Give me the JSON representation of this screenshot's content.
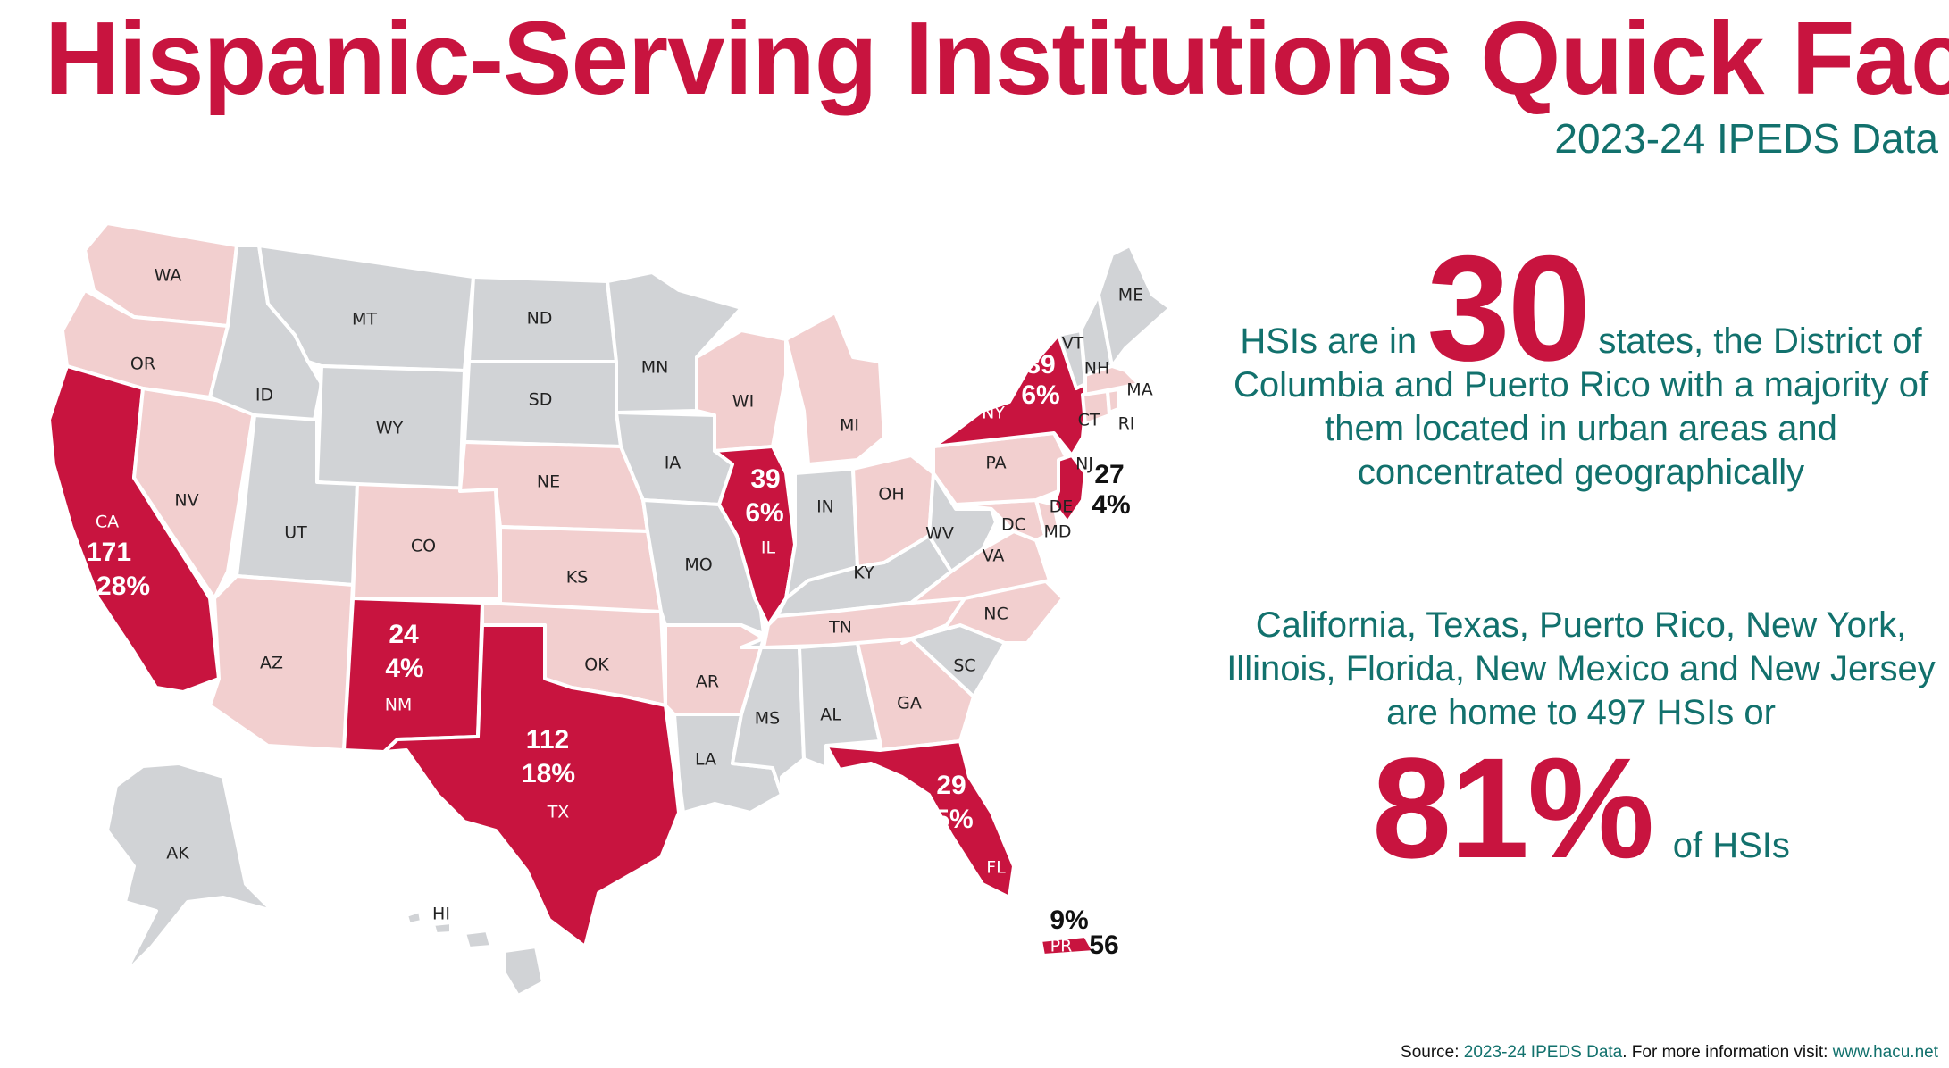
{
  "title": "Hispanic-Serving Institutions Quick Fact",
  "subtitle": "2023-24 IPEDS Data",
  "colors": {
    "highlight_state": "#c8143f",
    "hsi_state": "#f2cfcf",
    "no_hsi_state": "#d1d3d6",
    "accent_text": "#12716d",
    "title_red": "#c8143f"
  },
  "fact1": {
    "prefix": "HSIs are in",
    "number": "30",
    "suffix": "states, the District of Columbia and Puerto Rico with a majority of them located in urban areas and concentrated geographically"
  },
  "fact2": {
    "text": "California, Texas, Puerto Rico, New York, Illinois, Florida, New Mexico and New Jersey are home to 497 HSIs or",
    "percent": "81%",
    "suffix": "of HSIs"
  },
  "source": {
    "label": "Source:",
    "dataset": "2023-24 IPEDS Data",
    "more": ". For more information visit:",
    "url": "www.hacu.net"
  },
  "map": {
    "states": {
      "WA": "WA",
      "OR": "OR",
      "CA": "CA",
      "NV": "NV",
      "ID": "ID",
      "MT": "MT",
      "WY": "WY",
      "UT": "UT",
      "AZ": "AZ",
      "CO": "CO",
      "NM": "NM",
      "ND": "ND",
      "SD": "SD",
      "NE": "NE",
      "KS": "KS",
      "OK": "OK",
      "TX": "TX",
      "MN": "MN",
      "IA": "IA",
      "MO": "MO",
      "AR": "AR",
      "LA": "LA",
      "WI": "WI",
      "IL": "IL",
      "MI": "MI",
      "IN": "IN",
      "OH": "OH",
      "KY": "KY",
      "TN": "TN",
      "MS": "MS",
      "AL": "AL",
      "GA": "GA",
      "FL": "FL",
      "SC": "SC",
      "NC": "NC",
      "VA": "VA",
      "WV": "WV",
      "PA": "PA",
      "NY": "NY",
      "VT": "VT",
      "NH": "NH",
      "ME": "ME",
      "MA": "MA",
      "CT": "CT",
      "RI": "RI",
      "NJ": "NJ",
      "DE": "DE",
      "MD": "MD",
      "DC": "DC",
      "AK": "AK",
      "HI": "HI",
      "PR": "PR"
    },
    "highlights": {
      "CA": {
        "count": "171",
        "pct": "28%"
      },
      "TX": {
        "count": "112",
        "pct": "18%"
      },
      "NM": {
        "count": "24",
        "pct": "4%"
      },
      "IL": {
        "count": "39",
        "pct": "6%"
      },
      "NY": {
        "count": "39",
        "pct": "6%"
      },
      "FL": {
        "count": "29",
        "pct": "5%"
      },
      "NJ": {
        "count": "27",
        "pct": "4%"
      },
      "PR": {
        "count": "56",
        "pct": "9%"
      }
    }
  }
}
